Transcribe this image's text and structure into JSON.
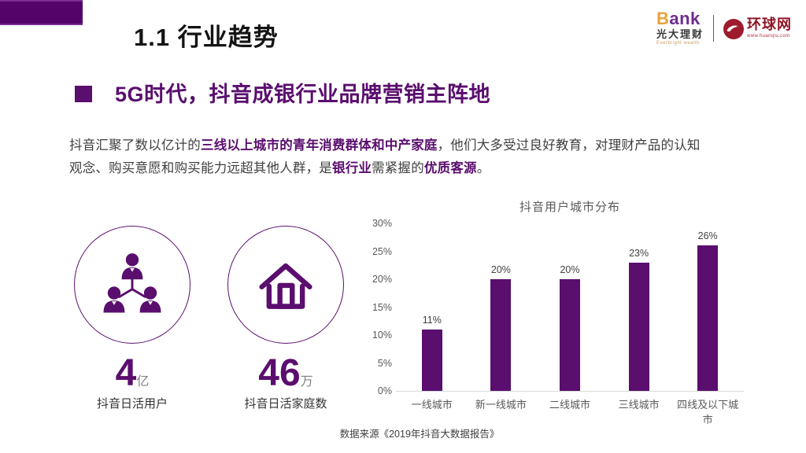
{
  "slide": {
    "title": "1.1 行业趋势",
    "heading": "5G时代，抖音成银行业品牌营销主阵地",
    "footer": "数据来源《2019年抖音大数据报告》"
  },
  "logos": {
    "bank": {
      "initial": "B",
      "rest": "ank",
      "name_cn": "光大理财",
      "name_en": "Everbright wealth"
    },
    "huanqiu": {
      "name_cn": "环球网",
      "url": "www.huanqiu.com"
    }
  },
  "paragraph": {
    "lines": [
      [
        {
          "text": "抖音汇聚了数以亿计的",
          "bold": false
        },
        {
          "text": "三线以上城市的青年消费群体和中产家庭",
          "bold": true
        },
        {
          "text": "，他们大多受过良好教育，对理财产品的认知",
          "bold": false
        }
      ],
      [
        {
          "text": "观念、购买意愿和购买能力远超其他人群，是",
          "bold": false
        },
        {
          "text": "银行业",
          "bold": true
        },
        {
          "text": "需紧握的",
          "bold": false
        },
        {
          "text": "优质客源",
          "bold": true
        },
        {
          "text": "。",
          "bold": false
        }
      ]
    ]
  },
  "stats": [
    {
      "value": "4",
      "unit": "亿",
      "label": "抖音日活用户",
      "icon": "people-network-icon"
    },
    {
      "value": "46",
      "unit": "万",
      "label": "抖音日活家庭数",
      "icon": "house-icon"
    }
  ],
  "chart_data": {
    "type": "bar",
    "title": "抖音用户城市分布",
    "categories": [
      "一线城市",
      "新一线城市",
      "二线城市",
      "三线城市",
      "四线及以下城市"
    ],
    "values": [
      11,
      20,
      20,
      23,
      26
    ],
    "data_labels": [
      "11%",
      "20%",
      "20%",
      "23%",
      "26%"
    ],
    "ylabel": "",
    "xlabel": "",
    "ylim": [
      0,
      30
    ],
    "ytick_step": 5,
    "ytick_suffix": "%",
    "grid": false,
    "legend": "none",
    "bar_color": "#5a0e6e"
  },
  "colors": {
    "primary_purple": "#5a0e6e",
    "accent_rect": "#520469",
    "title_black": "#141414",
    "body_text": "#3f3f3f",
    "chart_gray": "#595959",
    "axis_gray": "#d9d9d9",
    "bank_gold": "#e8a33b",
    "bank_purple": "#6f2c91",
    "huanqiu_red": "#9e1b2e"
  }
}
